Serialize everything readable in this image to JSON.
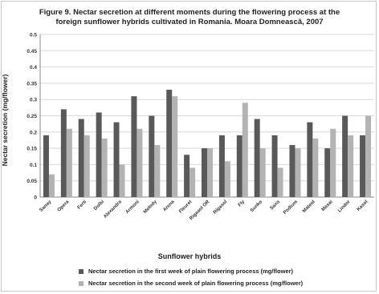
{
  "chart_data": {
    "type": "bar",
    "title": "Figure 9. Nectar secretion at different moments during the flowering process at the foreign sunflower hybrids cultivated in Romania. Moara Domnească, 2007",
    "title_lines": [
      "Figure 9. Nectar secretion at different moments during the flowering process at the",
      "foreign sunflower hybrids cultivated in Romania. Moara Domnească, 2007"
    ],
    "xlabel": "Sunflower hybrids",
    "ylabel": "Nectar secretion (mg/flower)",
    "ylim": [
      0,
      0.5
    ],
    "yticks": [
      "0",
      "0.05",
      "0.1",
      "0.15",
      "0.2",
      "0.25",
      "0.3",
      "0.35",
      "0.4",
      "0.45",
      "0.5"
    ],
    "grid": true,
    "legend_position": "bottom",
    "categories": [
      "Sanay",
      "Opera",
      "Ferti",
      "Dolbi",
      "Alexandra",
      "Armoni",
      "Melody",
      "Arena",
      "Fleuret",
      "Rigasol OR",
      "Rigasol",
      "Fly",
      "Sunko",
      "Saxo",
      "Podium",
      "Mateol",
      "Masai",
      "Lindor",
      "Kasol"
    ],
    "series": [
      {
        "name": "Nectar secretion in the first week of plain flowering process (mg/flower)",
        "color": "#595959",
        "values": [
          0.19,
          0.27,
          0.24,
          0.26,
          0.23,
          0.31,
          0.25,
          0.33,
          0.13,
          0.15,
          0.19,
          0.19,
          0.24,
          0.19,
          0.16,
          0.23,
          0.15,
          0.25,
          0.19
        ]
      },
      {
        "name": "Nectar secretion in the second week of plain flowering process (mg/flower)",
        "color": "#b3b3b3",
        "values": [
          0.07,
          0.21,
          0.19,
          0.18,
          0.1,
          0.21,
          0.16,
          0.31,
          0.09,
          0.15,
          0.11,
          0.29,
          0.15,
          0.09,
          0.15,
          0.18,
          0.21,
          0.19,
          0.25
        ]
      }
    ]
  }
}
